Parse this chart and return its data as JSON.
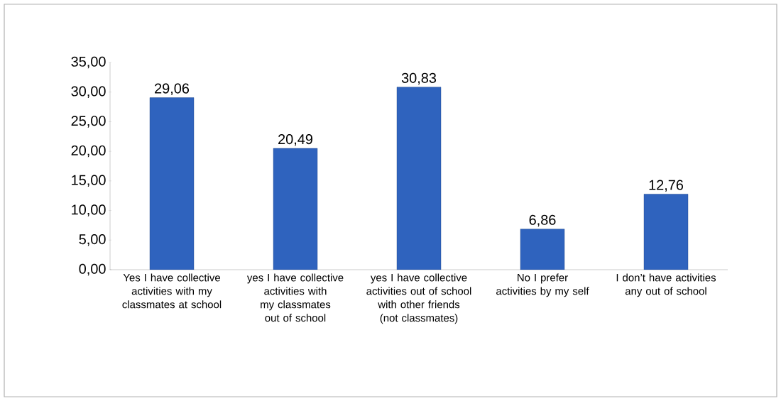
{
  "chart_data": {
    "type": "bar",
    "categories": [
      "Yes I have collective activities with my classmates at school",
      "yes I have collective activities with my classmates out of school",
      "yes I have collective activities out of school with other friends (not classmates)",
      "No I prefer activities by my self",
      "I don’t have activities any out of school"
    ],
    "values": [
      29.06,
      20.49,
      30.83,
      6.86,
      12.76
    ],
    "value_labels": [
      "29,06",
      "20,49",
      "30,83",
      "6,86",
      "12,76"
    ],
    "color": "#2f63be",
    "ylim": [
      0,
      35
    ],
    "yticks": [
      {
        "value": 0,
        "label": "0,00"
      },
      {
        "value": 5,
        "label": "5,00"
      },
      {
        "value": 10,
        "label": "10,00"
      },
      {
        "value": 15,
        "label": "15,00"
      },
      {
        "value": 20,
        "label": "20,00"
      },
      {
        "value": 25,
        "label": "25,00"
      },
      {
        "value": 30,
        "label": "30,00"
      },
      {
        "value": 35,
        "label": "35,00"
      }
    ],
    "grid": false
  }
}
